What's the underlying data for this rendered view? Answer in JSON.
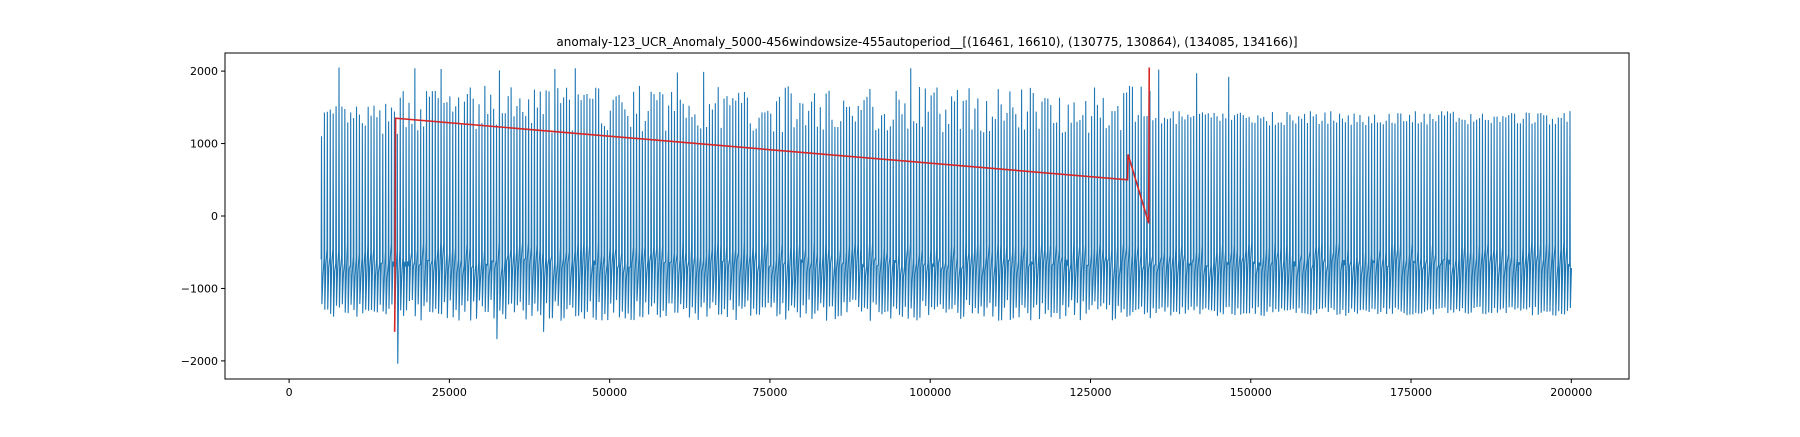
{
  "chart_data": {
    "type": "line",
    "title": "anomaly-123_UCR_Anomaly_5000-456windowsize-455autoperiod__[(16461, 16610), (130775, 130864), (134085, 134166)]",
    "xlabel": "",
    "ylabel": "",
    "xlim": [
      -10000,
      209000
    ],
    "ylim": [
      -2250,
      2250
    ],
    "grid": false,
    "x_ticks": [
      0,
      25000,
      50000,
      75000,
      100000,
      125000,
      150000,
      175000,
      200000
    ],
    "x_tick_labels": [
      "0",
      "25000",
      "50000",
      "75000",
      "100000",
      "125000",
      "150000",
      "175000",
      "200000"
    ],
    "y_ticks": [
      -2000,
      -1000,
      0,
      1000,
      2000
    ],
    "y_tick_labels": [
      "−2000",
      "−1000",
      "0",
      "1000",
      "2000"
    ],
    "series": [
      {
        "color": "#1f77b4",
        "x_start": 5000,
        "x_end": 199999,
        "period": 455,
        "segments": [
          {
            "x_start": 5000,
            "x_end": 17000,
            "peak_range": [
              1100,
              1550
            ],
            "trough_range": [
              -1400,
              -1200
            ]
          },
          {
            "x_start": 17000,
            "x_end": 135000,
            "peak_range": [
              1150,
              1800
            ],
            "trough_range": [
              -1450,
              -1150
            ]
          },
          {
            "x_start": 135000,
            "x_end": 200000,
            "peak_range": [
              1250,
              1450
            ],
            "trough_range": [
              -1380,
              -1250
            ]
          }
        ],
        "spikes": [
          {
            "x": 7900,
            "y": 2050
          },
          {
            "x": 19500,
            "y": 2040
          },
          {
            "x": 23800,
            "y": 2030
          },
          {
            "x": 32800,
            "y": 2010
          },
          {
            "x": 41600,
            "y": 2030
          },
          {
            "x": 44800,
            "y": 2040
          },
          {
            "x": 60500,
            "y": 1980
          },
          {
            "x": 64400,
            "y": 1990
          },
          {
            "x": 96700,
            "y": 2040
          },
          {
            "x": 135700,
            "y": 2020
          },
          {
            "x": 141500,
            "y": 1970
          },
          {
            "x": 146300,
            "y": 1920
          },
          {
            "x": 17000,
            "y": -2040
          },
          {
            "x": 32100,
            "y": -1700
          },
          {
            "x": 39800,
            "y": -1600
          }
        ]
      },
      {
        "color": "#d62728",
        "anomaly_ranges": [
          [
            16461,
            16610
          ],
          [
            130775,
            130864
          ],
          [
            134085,
            134166
          ]
        ],
        "x": [
          16461,
          16500,
          16560,
          16610,
          130775,
          130864,
          134085,
          134120,
          134166
        ],
        "y": [
          -1600,
          -1300,
          100,
          1350,
          500,
          850,
          -100,
          1200,
          2050
        ]
      }
    ]
  }
}
